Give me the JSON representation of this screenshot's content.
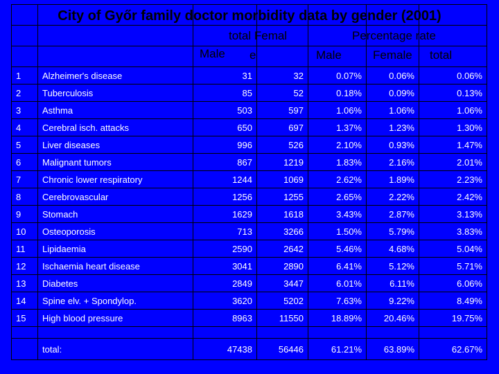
{
  "title": "City of Győr family doctor morbidity data by gender (2001)",
  "headers": {
    "total_femal": "total Femal",
    "e": "e",
    "percentage_rate": "Percentage rate",
    "male": "Male",
    "pct_male": "Male",
    "pct_female": "Female",
    "pct_total": "total"
  },
  "rows": [
    {
      "no": "1",
      "name": "Alzheimer's disease",
      "male": "31",
      "female": "32",
      "pct_male": "0.07%",
      "pct_female": "0.06%",
      "pct_total": "0.06%"
    },
    {
      "no": "2",
      "name": "Tuberculosis",
      "male": "85",
      "female": "52",
      "pct_male": "0.18%",
      "pct_female": "0.09%",
      "pct_total": "0.13%"
    },
    {
      "no": "3",
      "name": "Asthma",
      "male": "503",
      "female": "597",
      "pct_male": "1.06%",
      "pct_female": "1.06%",
      "pct_total": "1.06%"
    },
    {
      "no": "4",
      "name": "Cerebral isch. attacks",
      "male": "650",
      "female": "697",
      "pct_male": "1.37%",
      "pct_female": "1.23%",
      "pct_total": "1.30%"
    },
    {
      "no": "5",
      "name": "Liver diseases",
      "male": "996",
      "female": "526",
      "pct_male": "2.10%",
      "pct_female": "0.93%",
      "pct_total": "1.47%"
    },
    {
      "no": "6",
      "name": "Malignant tumors",
      "male": "867",
      "female": "1219",
      "pct_male": "1.83%",
      "pct_female": "2.16%",
      "pct_total": "2.01%"
    },
    {
      "no": "7",
      "name": "Chronic lower respiratory",
      "male": "1244",
      "female": "1069",
      "pct_male": "2.62%",
      "pct_female": "1.89%",
      "pct_total": "2.23%"
    },
    {
      "no": "8",
      "name": "Cerebrovascular",
      "male": "1256",
      "female": "1255",
      "pct_male": "2.65%",
      "pct_female": "2.22%",
      "pct_total": "2.42%"
    },
    {
      "no": "9",
      "name": "Stomach",
      "male": "1629",
      "female": "1618",
      "pct_male": "3.43%",
      "pct_female": "2.87%",
      "pct_total": "3.13%"
    },
    {
      "no": "10",
      "name": "Osteoporosis",
      "male": "713",
      "female": "3266",
      "pct_male": "1.50%",
      "pct_female": "5.79%",
      "pct_total": "3.83%"
    },
    {
      "no": "11",
      "name": "Lipidaemia",
      "male": "2590",
      "female": "2642",
      "pct_male": "5.46%",
      "pct_female": "4.68%",
      "pct_total": "5.04%"
    },
    {
      "no": "12",
      "name": "Ischaemia heart disease",
      "male": "3041",
      "female": "2890",
      "pct_male": "6.41%",
      "pct_female": "5.12%",
      "pct_total": "5.71%"
    },
    {
      "no": "13",
      "name": "Diabetes",
      "male": "2849",
      "female": "3447",
      "pct_male": "6.01%",
      "pct_female": "6.11%",
      "pct_total": "6.06%"
    },
    {
      "no": "14",
      "name": "Spine elv. + Spondylop.",
      "male": "3620",
      "female": "5202",
      "pct_male": "7.63%",
      "pct_female": "9.22%",
      "pct_total": "8.49%"
    },
    {
      "no": "15",
      "name": "High blood pressure",
      "male": "8963",
      "female": "11550",
      "pct_male": "18.89%",
      "pct_female": "20.46%",
      "pct_total": "19.75%"
    }
  ],
  "total": {
    "label": "total:",
    "male": "47438",
    "female": "56446",
    "pct_male": "61.21%",
    "pct_female": "63.89%",
    "pct_total": "62.67%"
  },
  "colors": {
    "background": "#0000ff",
    "header_text": "#000000",
    "cell_text": "#ffffff",
    "grid": "#000000"
  }
}
